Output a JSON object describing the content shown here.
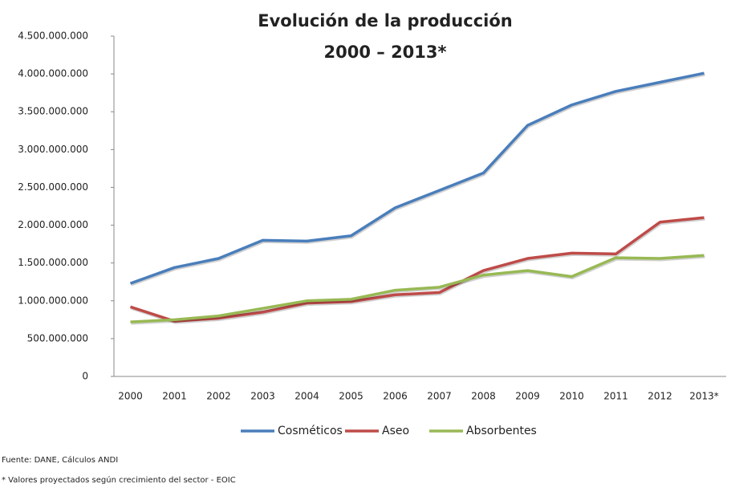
{
  "chart_data": {
    "type": "line",
    "title": "Evolución de la producción",
    "subtitle": "2000 – 2013*",
    "categories": [
      "2000",
      "2001",
      "2002",
      "2003",
      "2004",
      "2005",
      "2006",
      "2007",
      "2008",
      "2009",
      "2010",
      "2011",
      "2012",
      "2013*"
    ],
    "series": [
      {
        "name": "Cosméticos",
        "color": "#4a7ebb",
        "values": [
          1230000000,
          1440000000,
          1560000000,
          1800000000,
          1790000000,
          1860000000,
          2230000000,
          2460000000,
          2690000000,
          3320000000,
          3590000000,
          3770000000,
          3890000000,
          4010000000
        ]
      },
      {
        "name": "Aseo",
        "color": "#be4b48",
        "values": [
          920000000,
          730000000,
          770000000,
          850000000,
          970000000,
          990000000,
          1080000000,
          1110000000,
          1400000000,
          1560000000,
          1630000000,
          1620000000,
          2040000000,
          2100000000
        ]
      },
      {
        "name": "Absorbentes",
        "color": "#98b954",
        "values": [
          720000000,
          750000000,
          800000000,
          900000000,
          1000000000,
          1020000000,
          1140000000,
          1180000000,
          1340000000,
          1400000000,
          1320000000,
          1570000000,
          1560000000,
          1600000000
        ]
      }
    ],
    "ylim": [
      0,
      4500000000
    ],
    "yticks": [
      0,
      {
        "value": 500000000,
        "label": "500.000.000"
      },
      {
        "value": 1000000000,
        "label": "1.000.000.000"
      },
      {
        "value": 1500000000,
        "label": "1.500.000.000"
      },
      {
        "value": 2000000000,
        "label": "2.000.000.000"
      },
      {
        "value": 2500000000,
        "label": "2.500.000.000"
      },
      {
        "value": 3000000000,
        "label": "3.000.000.000"
      },
      {
        "value": 3500000000,
        "label": "3.500.000.000"
      },
      {
        "value": 4000000000,
        "label": "4.000.000.000"
      },
      {
        "value": 4500000000,
        "label": "4.500.000.000"
      }
    ],
    "grid": false,
    "legend": "bottom",
    "notes": [
      "Fuente: DANE, Cálculos ANDI",
      "* Valores proyectados según crecimiento del sector - EOIC"
    ]
  }
}
